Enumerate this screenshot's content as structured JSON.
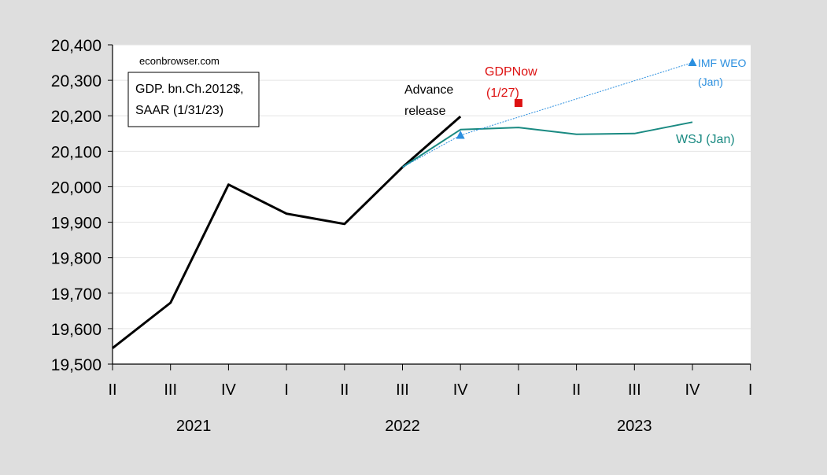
{
  "chart_data": {
    "type": "line",
    "x": [
      "II",
      "III",
      "IV",
      "I",
      "II",
      "III",
      "IV",
      "I",
      "II",
      "III",
      "IV",
      "I"
    ],
    "year_labels": [
      {
        "label": "2021",
        "index": 1.4
      },
      {
        "label": "2022",
        "index": 5.0
      },
      {
        "label": "2023",
        "index": 9.0
      }
    ],
    "ylim": [
      19500,
      20400
    ],
    "yticks": [
      19500,
      19600,
      19700,
      19800,
      19900,
      20000,
      20100,
      20200,
      20300,
      20400
    ],
    "ytick_labels": [
      "19,500",
      "19,600",
      "19,700",
      "19,800",
      "19,900",
      "20,000",
      "20,100",
      "20,200",
      "20,300",
      "20,400"
    ],
    "grid": true,
    "series": [
      {
        "name": "Advance release",
        "color": "#000000",
        "style": "solid",
        "points": [
          [
            0,
            19545
          ],
          [
            1,
            19673
          ],
          [
            2,
            20006
          ],
          [
            3,
            19924
          ],
          [
            4,
            19895
          ],
          [
            5,
            20055
          ],
          [
            6,
            20198
          ]
        ]
      },
      {
        "name": "WSJ (Jan)",
        "color": "#1a8a82",
        "style": "solid",
        "points": [
          [
            5,
            20055
          ],
          [
            6,
            20161
          ],
          [
            7,
            20167
          ],
          [
            8,
            20148
          ],
          [
            9,
            20150
          ],
          [
            10,
            20182
          ]
        ]
      },
      {
        "name": "IMF WEO (Jan)",
        "color": "#2b8fdf",
        "style": "dotted",
        "points": [
          [
            5,
            20055
          ],
          [
            6,
            20145
          ],
          [
            10,
            20350
          ]
        ]
      }
    ],
    "markers": [
      {
        "name": "GDPNow (1/27)",
        "color": "#dd1111",
        "shape": "square",
        "x": 7,
        "y": 20236
      },
      {
        "name": "IMF WEO (Jan)",
        "color": "#2b8fdf",
        "shape": "triangle",
        "x": 6,
        "y": 20145
      },
      {
        "name": "IMF WEO (Jan)",
        "color": "#2b8fdf",
        "shape": "triangle",
        "x": 10,
        "y": 20350
      }
    ],
    "annotations": {
      "source": "econbrowser.com",
      "box_line1": "GDP. bn.Ch.2012$,",
      "box_line2": "SAAR (1/31/23)",
      "advance_line1": "Advance",
      "advance_line2": "release",
      "gdpnow_line1": "GDPNow",
      "gdpnow_line2": "(1/27)",
      "imf_line1": "IMF WEO",
      "imf_line2": "(Jan)",
      "wsj": "WSJ (Jan)"
    },
    "colors": {
      "advance": "#000000",
      "wsj": "#1a8a82",
      "imf": "#2b8fdf",
      "gdpnow": "#dd1111"
    }
  }
}
